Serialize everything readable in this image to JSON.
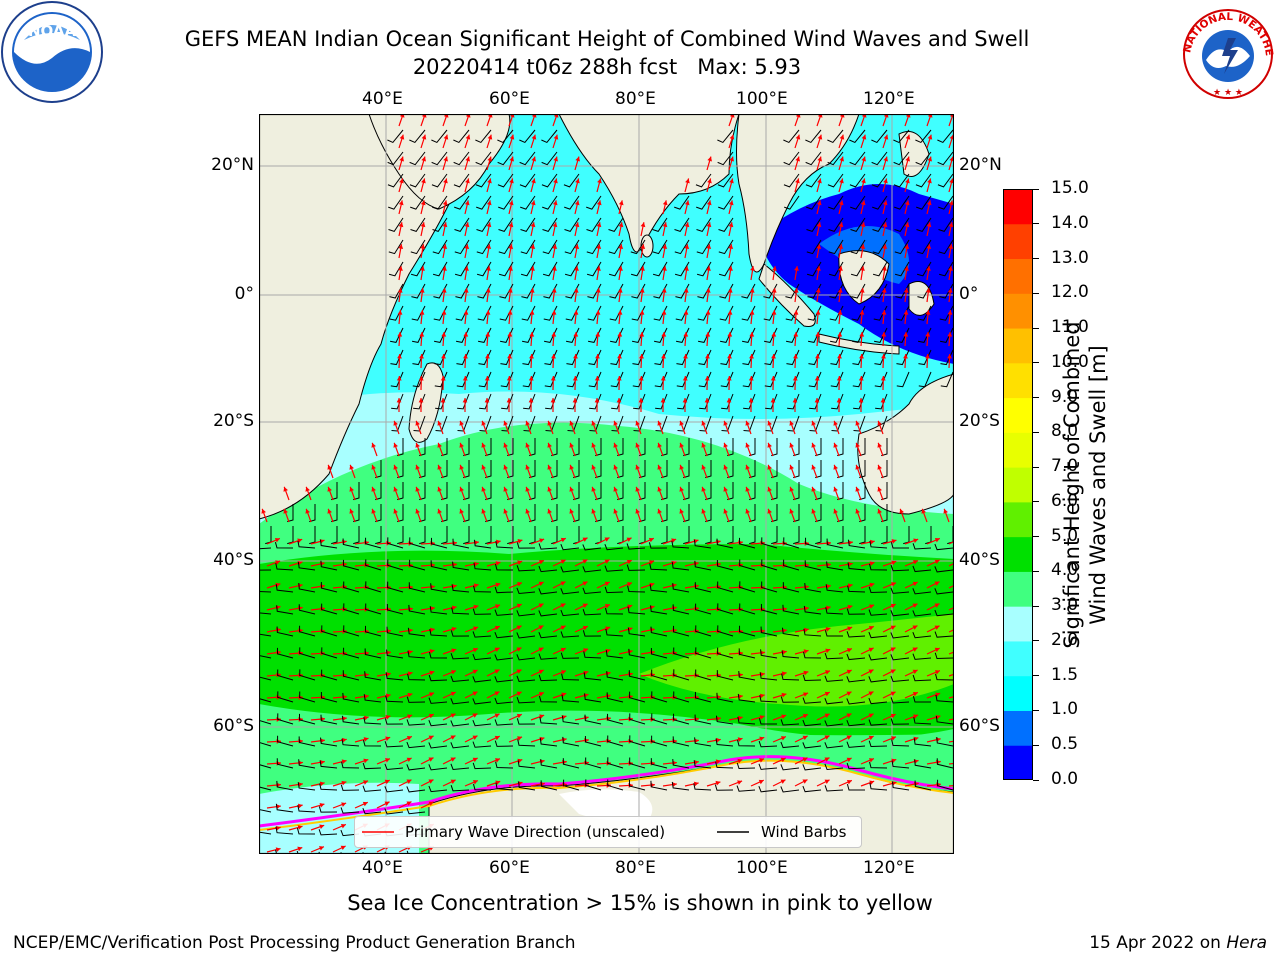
{
  "title": {
    "line1": "GEFS MEAN Indian Ocean Significant Height of Combined Wind Waves and Swell",
    "line2": "20220414 t06z 288h fcst   Max: 5.93"
  },
  "logos": {
    "left": {
      "icon": "noaa-logo-icon",
      "text": "NOAA"
    },
    "right": {
      "icon": "nws-logo-icon",
      "text": "NATIONAL WEATHER SERVICE"
    }
  },
  "map": {
    "region": "Indian Ocean",
    "lon_ticks": [
      "40°E",
      "60°E",
      "80°E",
      "100°E",
      "120°E"
    ],
    "lat_ticks": [
      "20°N",
      "0°",
      "20°S",
      "40°S",
      "60°S"
    ],
    "land_color": "#efefdf",
    "sea_ice_colors": [
      "#ff00ff",
      "#ff99cc",
      "#ffcc00"
    ],
    "arrow_color": "#ff0000",
    "barb_color": "#000000",
    "grid": true
  },
  "colorbar": {
    "label_line1": "Significant Height of Combined",
    "label_line2": "Wind Waves and Swell [m]",
    "ticks": [
      "0.0",
      "0.5",
      "1.0",
      "1.5",
      "2.0",
      "3.0",
      "4.0",
      "5.0",
      "6.0",
      "7.0",
      "8.0",
      "9.0",
      "10.0",
      "11.0",
      "12.0",
      "13.0",
      "14.0",
      "15.0"
    ],
    "colors": [
      "#0000ff",
      "#0070ff",
      "#00ffff",
      "#40ffff",
      "#a8ffff",
      "#40ff80",
      "#00e000",
      "#60f000",
      "#c0ff00",
      "#e8ff00",
      "#ffff00",
      "#ffe000",
      "#ffc000",
      "#ff9000",
      "#ff7000",
      "#ff4000",
      "#ff0000"
    ]
  },
  "legend": {
    "items": [
      {
        "label": "Primary Wave Direction (unscaled)",
        "color": "#ff0000"
      },
      {
        "label": "Wind Barbs",
        "color": "#000000"
      }
    ]
  },
  "footer": {
    "note": "Sea Ice Concentration > 15% is shown in pink to yellow",
    "credit": "NCEP/EMC/Verification Post Processing Product Generation Branch",
    "date": "15 Apr 2022",
    "on": "on",
    "host": "Hera"
  }
}
